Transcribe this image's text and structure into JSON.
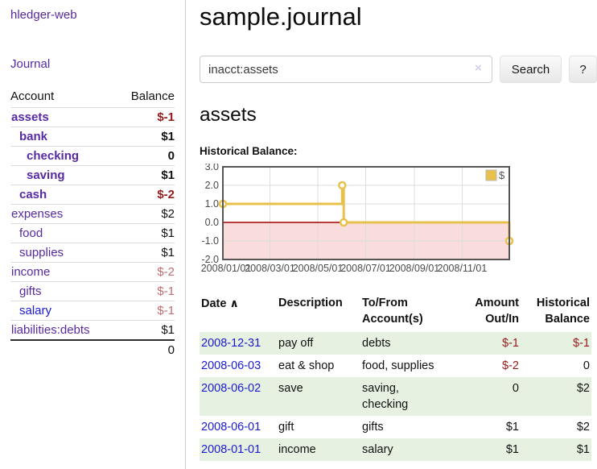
{
  "app": {
    "brand": "hledger-web",
    "nav_journal": "Journal"
  },
  "sidebar": {
    "col_account": "Account",
    "col_balance": "Balance",
    "accounts": [
      {
        "name": "assets",
        "balance": "$-1",
        "indent": 0,
        "bold": true,
        "neg": "strong"
      },
      {
        "name": "bank",
        "balance": "$1",
        "indent": 1,
        "bold": true,
        "neg": "none"
      },
      {
        "name": "checking",
        "balance": "0",
        "indent": 2,
        "bold": true,
        "neg": "none"
      },
      {
        "name": "saving",
        "balance": "$1",
        "indent": 2,
        "bold": true,
        "neg": "none"
      },
      {
        "name": "cash",
        "balance": "$-2",
        "indent": 1,
        "bold": true,
        "neg": "strong"
      },
      {
        "name": "expenses",
        "balance": "$2",
        "indent": 0,
        "bold": false,
        "neg": "none"
      },
      {
        "name": "food",
        "balance": "$1",
        "indent": 1,
        "bold": false,
        "neg": "none"
      },
      {
        "name": "supplies",
        "balance": "$1",
        "indent": 1,
        "bold": false,
        "neg": "none"
      },
      {
        "name": "income",
        "balance": "$-2",
        "indent": 0,
        "bold": false,
        "neg": "muted"
      },
      {
        "name": "gifts",
        "balance": "$-1",
        "indent": 1,
        "bold": false,
        "neg": "muted"
      },
      {
        "name": "salary",
        "balance": "$-1",
        "indent": 1,
        "bold": false,
        "neg": "muted",
        "blue": true
      },
      {
        "name": "liabilities:debts",
        "balance": "$1",
        "indent": 0,
        "bold": false,
        "neg": "none"
      }
    ],
    "total": "0"
  },
  "header": {
    "title": "sample.journal"
  },
  "search": {
    "query": "inacct:assets",
    "clear_icon": "×",
    "button_label": "Search",
    "help_label": "?"
  },
  "account_page": {
    "title": "assets",
    "chart_heading": "Historical Balance:"
  },
  "chart_data": {
    "type": "line",
    "style": "step",
    "title": "Historical Balance:",
    "series": [
      {
        "name": "$",
        "color": "#E8C14D",
        "points": [
          [
            "2008-01-01",
            1
          ],
          [
            "2008-06-01",
            2
          ],
          [
            "2008-06-03",
            0
          ],
          [
            "2008-12-31",
            -1
          ]
        ]
      }
    ],
    "x_range": [
      "2008-01-01",
      "2008-12-31"
    ],
    "x_ticks": [
      "2008/01/01",
      "2008/03/01",
      "2008/05/01",
      "2008/07/01",
      "2008/09/01",
      "2008/11/01"
    ],
    "y_ticks": [
      3.0,
      2.0,
      1.0,
      0.0,
      -1.0,
      -2.0
    ],
    "ylim": [
      -2,
      3
    ],
    "grid": true,
    "legend_position": "top-right",
    "negative_fill": "#f9dcdc",
    "zero_line_color": "#a40000",
    "grid_color": "#dddddd",
    "border_color": "#565656"
  },
  "register": {
    "headers": {
      "date": "Date",
      "sort_icon": "∧",
      "description": "Description",
      "tofrom": "To/From Account(s)",
      "amount": "Amount Out/In",
      "balance": "Historical Balance"
    },
    "rows": [
      {
        "date": "2008-12-31",
        "description": "pay off",
        "tofrom": "debts",
        "amount": "$-1",
        "amount_neg": true,
        "balance": "$-1",
        "balance_neg": true
      },
      {
        "date": "2008-06-03",
        "description": "eat & shop",
        "tofrom": "food, supplies",
        "amount": "$-2",
        "amount_neg": true,
        "balance": "0",
        "balance_neg": false
      },
      {
        "date": "2008-06-02",
        "description": "save",
        "tofrom": "saving,\nchecking",
        "amount": "0",
        "amount_neg": false,
        "balance": "$2",
        "balance_neg": false
      },
      {
        "date": "2008-06-01",
        "description": "gift",
        "tofrom": "gifts",
        "amount": "$1",
        "amount_neg": false,
        "balance": "$2",
        "balance_neg": false
      },
      {
        "date": "2008-01-01",
        "description": "income",
        "tofrom": "salary",
        "amount": "$1",
        "amount_neg": false,
        "balance": "$1",
        "balance_neg": false
      }
    ]
  }
}
